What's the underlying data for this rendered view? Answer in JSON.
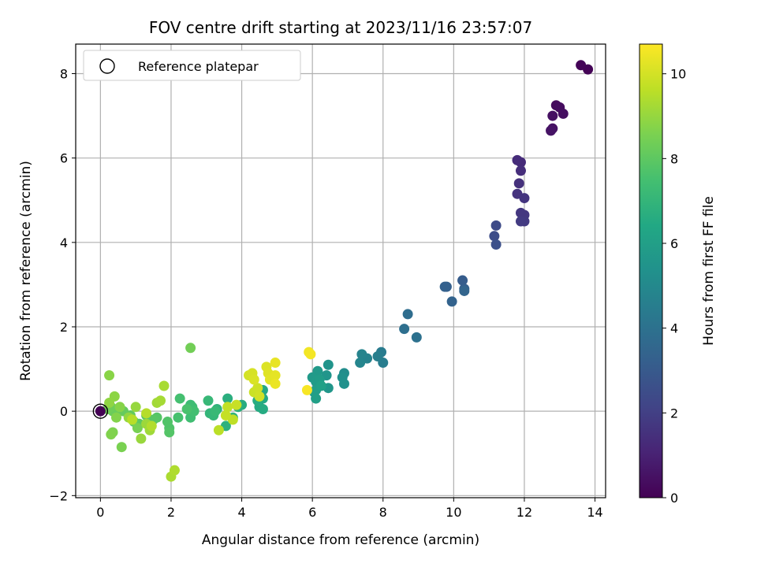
{
  "chart_data": {
    "type": "scatter",
    "title": "FOV centre drift starting at 2023/11/16 23:57:07",
    "xlabel": "Angular distance from reference (arcmin)",
    "ylabel": "Rotation from reference (arcmin)",
    "xlim": [
      -0.7,
      14.3
    ],
    "ylim": [
      -2.05,
      8.7
    ],
    "xticks": [
      0,
      2,
      4,
      6,
      8,
      10,
      12,
      14
    ],
    "yticks": [
      -2,
      0,
      2,
      4,
      6,
      8
    ],
    "grid": true,
    "legend": {
      "location": "upper-left",
      "entries": [
        {
          "label": "Reference platepar",
          "marker": "hollow-circle"
        }
      ]
    },
    "colorbar": {
      "label": "Hours from first FF file",
      "min": 0,
      "max": 10.7,
      "ticks": [
        0,
        2,
        4,
        6,
        8,
        10
      ],
      "colormap": "viridis"
    },
    "reference_point": {
      "x": 0,
      "y": 0,
      "hours": 0
    },
    "points": [
      {
        "x": 13.8,
        "y": 8.1,
        "h": 0.05
      },
      {
        "x": 13.6,
        "y": 8.2,
        "h": 0.1
      },
      {
        "x": 12.9,
        "y": 7.25,
        "h": 0.3
      },
      {
        "x": 13.0,
        "y": 7.2,
        "h": 0.35
      },
      {
        "x": 13.1,
        "y": 7.05,
        "h": 0.4
      },
      {
        "x": 12.8,
        "y": 7.0,
        "h": 0.45
      },
      {
        "x": 12.8,
        "y": 6.7,
        "h": 0.5
      },
      {
        "x": 12.75,
        "y": 6.65,
        "h": 0.55
      },
      {
        "x": 11.9,
        "y": 5.9,
        "h": 1.3
      },
      {
        "x": 11.8,
        "y": 5.95,
        "h": 1.35
      },
      {
        "x": 11.9,
        "y": 5.7,
        "h": 1.4
      },
      {
        "x": 11.85,
        "y": 5.4,
        "h": 1.5
      },
      {
        "x": 11.8,
        "y": 5.15,
        "h": 1.6
      },
      {
        "x": 12.0,
        "y": 5.05,
        "h": 1.65
      },
      {
        "x": 11.9,
        "y": 4.7,
        "h": 1.7
      },
      {
        "x": 12.0,
        "y": 4.65,
        "h": 1.75
      },
      {
        "x": 12.0,
        "y": 4.5,
        "h": 1.8
      },
      {
        "x": 11.9,
        "y": 4.5,
        "h": 1.85
      },
      {
        "x": 11.2,
        "y": 4.4,
        "h": 2.4
      },
      {
        "x": 11.15,
        "y": 4.15,
        "h": 2.5
      },
      {
        "x": 11.2,
        "y": 3.95,
        "h": 2.6
      },
      {
        "x": 10.25,
        "y": 3.1,
        "h": 3.1
      },
      {
        "x": 10.3,
        "y": 2.9,
        "h": 3.2
      },
      {
        "x": 9.8,
        "y": 2.95,
        "h": 3.25
      },
      {
        "x": 9.75,
        "y": 2.95,
        "h": 3.3
      },
      {
        "x": 9.95,
        "y": 2.6,
        "h": 3.4
      },
      {
        "x": 10.3,
        "y": 2.85,
        "h": 3.45
      },
      {
        "x": 8.7,
        "y": 2.3,
        "h": 3.8
      },
      {
        "x": 8.6,
        "y": 1.95,
        "h": 3.9
      },
      {
        "x": 8.95,
        "y": 1.75,
        "h": 4.0
      },
      {
        "x": 7.95,
        "y": 1.4,
        "h": 4.4
      },
      {
        "x": 8.0,
        "y": 1.15,
        "h": 4.5
      },
      {
        "x": 7.85,
        "y": 1.3,
        "h": 4.55
      },
      {
        "x": 7.55,
        "y": 1.25,
        "h": 4.7
      },
      {
        "x": 7.4,
        "y": 1.35,
        "h": 4.8
      },
      {
        "x": 7.35,
        "y": 1.15,
        "h": 4.85
      },
      {
        "x": 6.9,
        "y": 0.9,
        "h": 5.2
      },
      {
        "x": 6.85,
        "y": 0.8,
        "h": 5.3
      },
      {
        "x": 6.9,
        "y": 0.65,
        "h": 5.35
      },
      {
        "x": 6.45,
        "y": 1.1,
        "h": 5.5
      },
      {
        "x": 6.4,
        "y": 0.85,
        "h": 5.55
      },
      {
        "x": 6.45,
        "y": 0.55,
        "h": 5.6
      },
      {
        "x": 6.15,
        "y": 0.95,
        "h": 5.7
      },
      {
        "x": 6.0,
        "y": 0.8,
        "h": 5.75
      },
      {
        "x": 6.1,
        "y": 0.7,
        "h": 5.8
      },
      {
        "x": 6.2,
        "y": 0.75,
        "h": 5.85
      },
      {
        "x": 6.1,
        "y": 0.5,
        "h": 5.9
      },
      {
        "x": 6.05,
        "y": 0.45,
        "h": 5.95
      },
      {
        "x": 6.1,
        "y": 0.3,
        "h": 6.0
      },
      {
        "x": 6.25,
        "y": 0.6,
        "h": 6.05
      },
      {
        "x": 4.6,
        "y": 0.5,
        "h": 6.4
      },
      {
        "x": 4.6,
        "y": 0.3,
        "h": 6.45
      },
      {
        "x": 4.5,
        "y": 0.1,
        "h": 6.5
      },
      {
        "x": 4.6,
        "y": 0.05,
        "h": 6.55
      },
      {
        "x": 4.45,
        "y": 0.25,
        "h": 6.6
      },
      {
        "x": 4.0,
        "y": 0.15,
        "h": 6.6
      },
      {
        "x": 3.6,
        "y": 0.3,
        "h": 6.7
      },
      {
        "x": 3.9,
        "y": 0.1,
        "h": 6.75
      },
      {
        "x": 3.55,
        "y": -0.35,
        "h": 6.8
      },
      {
        "x": 3.75,
        "y": -0.15,
        "h": 6.85
      },
      {
        "x": 3.3,
        "y": 0.05,
        "h": 6.9
      },
      {
        "x": 3.1,
        "y": -0.05,
        "h": 7.0
      },
      {
        "x": 3.2,
        "y": -0.1,
        "h": 7.05
      },
      {
        "x": 3.05,
        "y": 0.25,
        "h": 7.1
      },
      {
        "x": 3.25,
        "y": 0.0,
        "h": 7.15
      },
      {
        "x": 2.55,
        "y": 0.15,
        "h": 7.3
      },
      {
        "x": 2.6,
        "y": 0.1,
        "h": 7.35
      },
      {
        "x": 2.55,
        "y": -0.15,
        "h": 7.4
      },
      {
        "x": 2.65,
        "y": 0.0,
        "h": 7.45
      },
      {
        "x": 2.25,
        "y": 0.3,
        "h": 7.5
      },
      {
        "x": 2.2,
        "y": -0.15,
        "h": 7.55
      },
      {
        "x": 2.45,
        "y": 0.05,
        "h": 7.6
      },
      {
        "x": 1.95,
        "y": -0.4,
        "h": 7.7
      },
      {
        "x": 1.9,
        "y": -0.25,
        "h": 7.75
      },
      {
        "x": 1.95,
        "y": -0.5,
        "h": 7.8
      },
      {
        "x": 1.6,
        "y": -0.15,
        "h": 7.85
      },
      {
        "x": 1.5,
        "y": -0.2,
        "h": 7.9
      },
      {
        "x": 1.3,
        "y": -0.1,
        "h": 7.95
      },
      {
        "x": 1.1,
        "y": -0.3,
        "h": 8.0
      },
      {
        "x": 0.95,
        "y": -0.25,
        "h": 8.05
      },
      {
        "x": 0.85,
        "y": -0.1,
        "h": 8.1
      },
      {
        "x": 0.65,
        "y": 0.0,
        "h": 8.15
      },
      {
        "x": 0.5,
        "y": 0.05,
        "h": 8.2
      },
      {
        "x": 0.35,
        "y": 0.0,
        "h": 8.25
      },
      {
        "x": 0.3,
        "y": 0.1,
        "h": 8.3
      },
      {
        "x": 0.2,
        "y": 0.05,
        "h": 8.35
      },
      {
        "x": 2.55,
        "y": 1.5,
        "h": 8.4
      },
      {
        "x": 1.05,
        "y": -0.4,
        "h": 8.5
      },
      {
        "x": 0.6,
        "y": -0.85,
        "h": 8.55
      },
      {
        "x": 0.35,
        "y": -0.5,
        "h": 8.6
      },
      {
        "x": 0.3,
        "y": -0.55,
        "h": 8.65
      },
      {
        "x": 0.45,
        "y": -0.15,
        "h": 8.7
      },
      {
        "x": 0.55,
        "y": 0.1,
        "h": 8.75
      },
      {
        "x": 0.25,
        "y": 0.85,
        "h": 8.8
      },
      {
        "x": 0.4,
        "y": 0.35,
        "h": 8.85
      },
      {
        "x": 0.25,
        "y": 0.2,
        "h": 8.9
      },
      {
        "x": 0.8,
        "y": -0.15,
        "h": 8.95
      },
      {
        "x": 1.0,
        "y": 0.1,
        "h": 9.0
      },
      {
        "x": 1.15,
        "y": -0.65,
        "h": 9.05
      },
      {
        "x": 1.3,
        "y": -0.3,
        "h": 9.1
      },
      {
        "x": 1.4,
        "y": -0.45,
        "h": 9.15
      },
      {
        "x": 1.6,
        "y": 0.2,
        "h": 9.2
      },
      {
        "x": 1.7,
        "y": 0.25,
        "h": 9.25
      },
      {
        "x": 1.8,
        "y": 0.6,
        "h": 9.3
      },
      {
        "x": 2.0,
        "y": -1.55,
        "h": 9.35
      },
      {
        "x": 2.1,
        "y": -1.4,
        "h": 9.4
      },
      {
        "x": 1.45,
        "y": -0.35,
        "h": 9.45
      },
      {
        "x": 1.3,
        "y": -0.05,
        "h": 9.5
      },
      {
        "x": 0.9,
        "y": -0.2,
        "h": 9.55
      },
      {
        "x": 3.35,
        "y": -0.45,
        "h": 9.6
      },
      {
        "x": 3.75,
        "y": -0.2,
        "h": 9.65
      },
      {
        "x": 3.6,
        "y": 0.1,
        "h": 9.7
      },
      {
        "x": 3.55,
        "y": -0.1,
        "h": 9.75
      },
      {
        "x": 3.85,
        "y": 0.15,
        "h": 9.8
      },
      {
        "x": 4.35,
        "y": 0.45,
        "h": 9.85
      },
      {
        "x": 4.45,
        "y": 0.55,
        "h": 9.9
      },
      {
        "x": 4.5,
        "y": 0.35,
        "h": 9.95
      },
      {
        "x": 4.2,
        "y": 0.85,
        "h": 10.0
      },
      {
        "x": 4.3,
        "y": 0.9,
        "h": 10.05
      },
      {
        "x": 4.35,
        "y": 0.75,
        "h": 10.1
      },
      {
        "x": 4.7,
        "y": 1.05,
        "h": 10.15
      },
      {
        "x": 4.75,
        "y": 0.9,
        "h": 10.2
      },
      {
        "x": 4.8,
        "y": 0.75,
        "h": 10.25
      },
      {
        "x": 4.95,
        "y": 0.85,
        "h": 10.3
      },
      {
        "x": 4.95,
        "y": 1.15,
        "h": 10.35
      },
      {
        "x": 4.95,
        "y": 0.65,
        "h": 10.4
      },
      {
        "x": 5.9,
        "y": 1.4,
        "h": 10.5
      },
      {
        "x": 5.95,
        "y": 1.35,
        "h": 10.55
      },
      {
        "x": 5.85,
        "y": 0.5,
        "h": 10.6
      }
    ]
  }
}
